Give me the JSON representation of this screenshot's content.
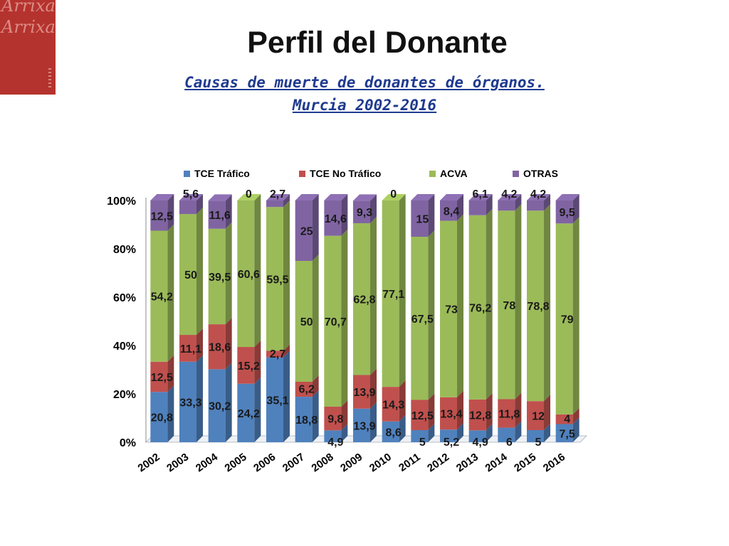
{
  "slide": {
    "title": "Perfil del Donante",
    "subtitle_line1": "Causas de muerte de donantes de órganos.",
    "subtitle_line2": "Murcia 2002-2016",
    "logo_text": "Arrixaca"
  },
  "colors": {
    "logo": "#b5332e",
    "subtitle": "#1f3a8f",
    "series": [
      "#4f81bd",
      "#c0504d",
      "#9bbb59",
      "#8064a2"
    ]
  },
  "chart_data": {
    "type": "bar",
    "stacked": "percent",
    "categories": [
      "2002",
      "2003",
      "2004",
      "2005",
      "2006",
      "2007",
      "2008",
      "2009",
      "2010",
      "2011",
      "2012",
      "2013",
      "2014",
      "2015",
      "2016"
    ],
    "series": [
      {
        "name": "TCE Tráfico",
        "values": [
          20.8,
          33.3,
          30.2,
          24.2,
          35.1,
          18.8,
          4.9,
          13.9,
          8.6,
          5,
          5.2,
          4.9,
          6,
          5,
          7.5
        ],
        "labels": [
          "20,8",
          "33,3",
          "30,2",
          "24,2",
          "35,1",
          "18,8",
          "4,9",
          "13,9",
          "8,6",
          "5",
          "5,2",
          "4,9",
          "6",
          "5",
          "7,5"
        ]
      },
      {
        "name": "TCE No Tráfico",
        "values": [
          12.5,
          11.1,
          18.6,
          15.2,
          2.7,
          6.2,
          9.8,
          13.9,
          14.3,
          12.5,
          13.4,
          12.8,
          11.8,
          12,
          4
        ],
        "labels": [
          "12,5",
          "11,1",
          "18,6",
          "15,2",
          "2,7",
          "6,2",
          "9,8",
          "13,9",
          "14,3",
          "12,5",
          "13,4",
          "12,8",
          "11,8",
          "12",
          "4"
        ]
      },
      {
        "name": "ACVA",
        "values": [
          54.2,
          50,
          39.5,
          60.6,
          59.5,
          50,
          70.7,
          62.8,
          77.1,
          67.5,
          73,
          76.2,
          78,
          78.8,
          79
        ],
        "labels": [
          "54,2",
          "50",
          "39,5",
          "60,6",
          "59,5",
          "50",
          "70,7",
          "62,8",
          "77,1",
          "67,5",
          "73",
          "76,2",
          "78",
          "78,8",
          "79"
        ]
      },
      {
        "name": "OTRAS",
        "values": [
          12.5,
          5.6,
          11.6,
          0,
          2.7,
          25,
          14.6,
          9.3,
          0,
          15,
          8.4,
          6.1,
          4.2,
          4.2,
          9.5
        ],
        "labels": [
          "12,5",
          "5,6",
          "11,6",
          "0",
          "2,7",
          "25",
          "14,6",
          "9,3",
          "0",
          "15",
          "8,4",
          "6,1",
          "4,2",
          "4,2",
          "9,5"
        ]
      }
    ],
    "y_ticks": [
      "0%",
      "20%",
      "40%",
      "60%",
      "80%",
      "100%"
    ],
    "ylim": [
      0,
      100
    ],
    "legend_position": "top",
    "grid": false
  }
}
